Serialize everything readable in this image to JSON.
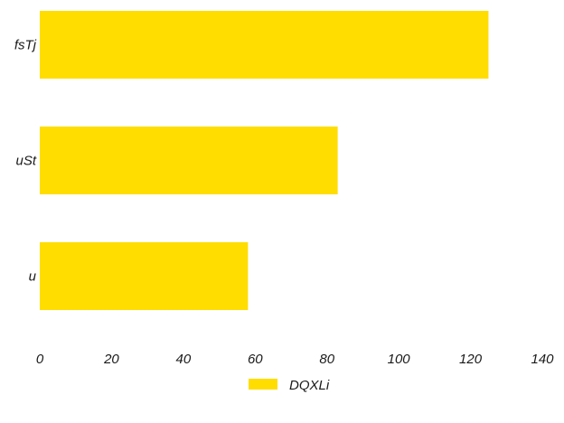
{
  "chart_data": {
    "type": "bar",
    "orientation": "horizontal",
    "categories": [
      "fsTj",
      "uSt",
      "u"
    ],
    "series": [
      {
        "name": "DQXLi",
        "values": [
          125,
          83,
          58
        ]
      }
    ],
    "xlim": [
      0,
      140
    ],
    "xticks": [
      "0",
      "20",
      "40",
      "60",
      "80",
      "100",
      "120",
      "140"
    ],
    "grid": false,
    "legend_position": "bottom-center",
    "colors": {
      "bar": "#FFDD00"
    }
  }
}
